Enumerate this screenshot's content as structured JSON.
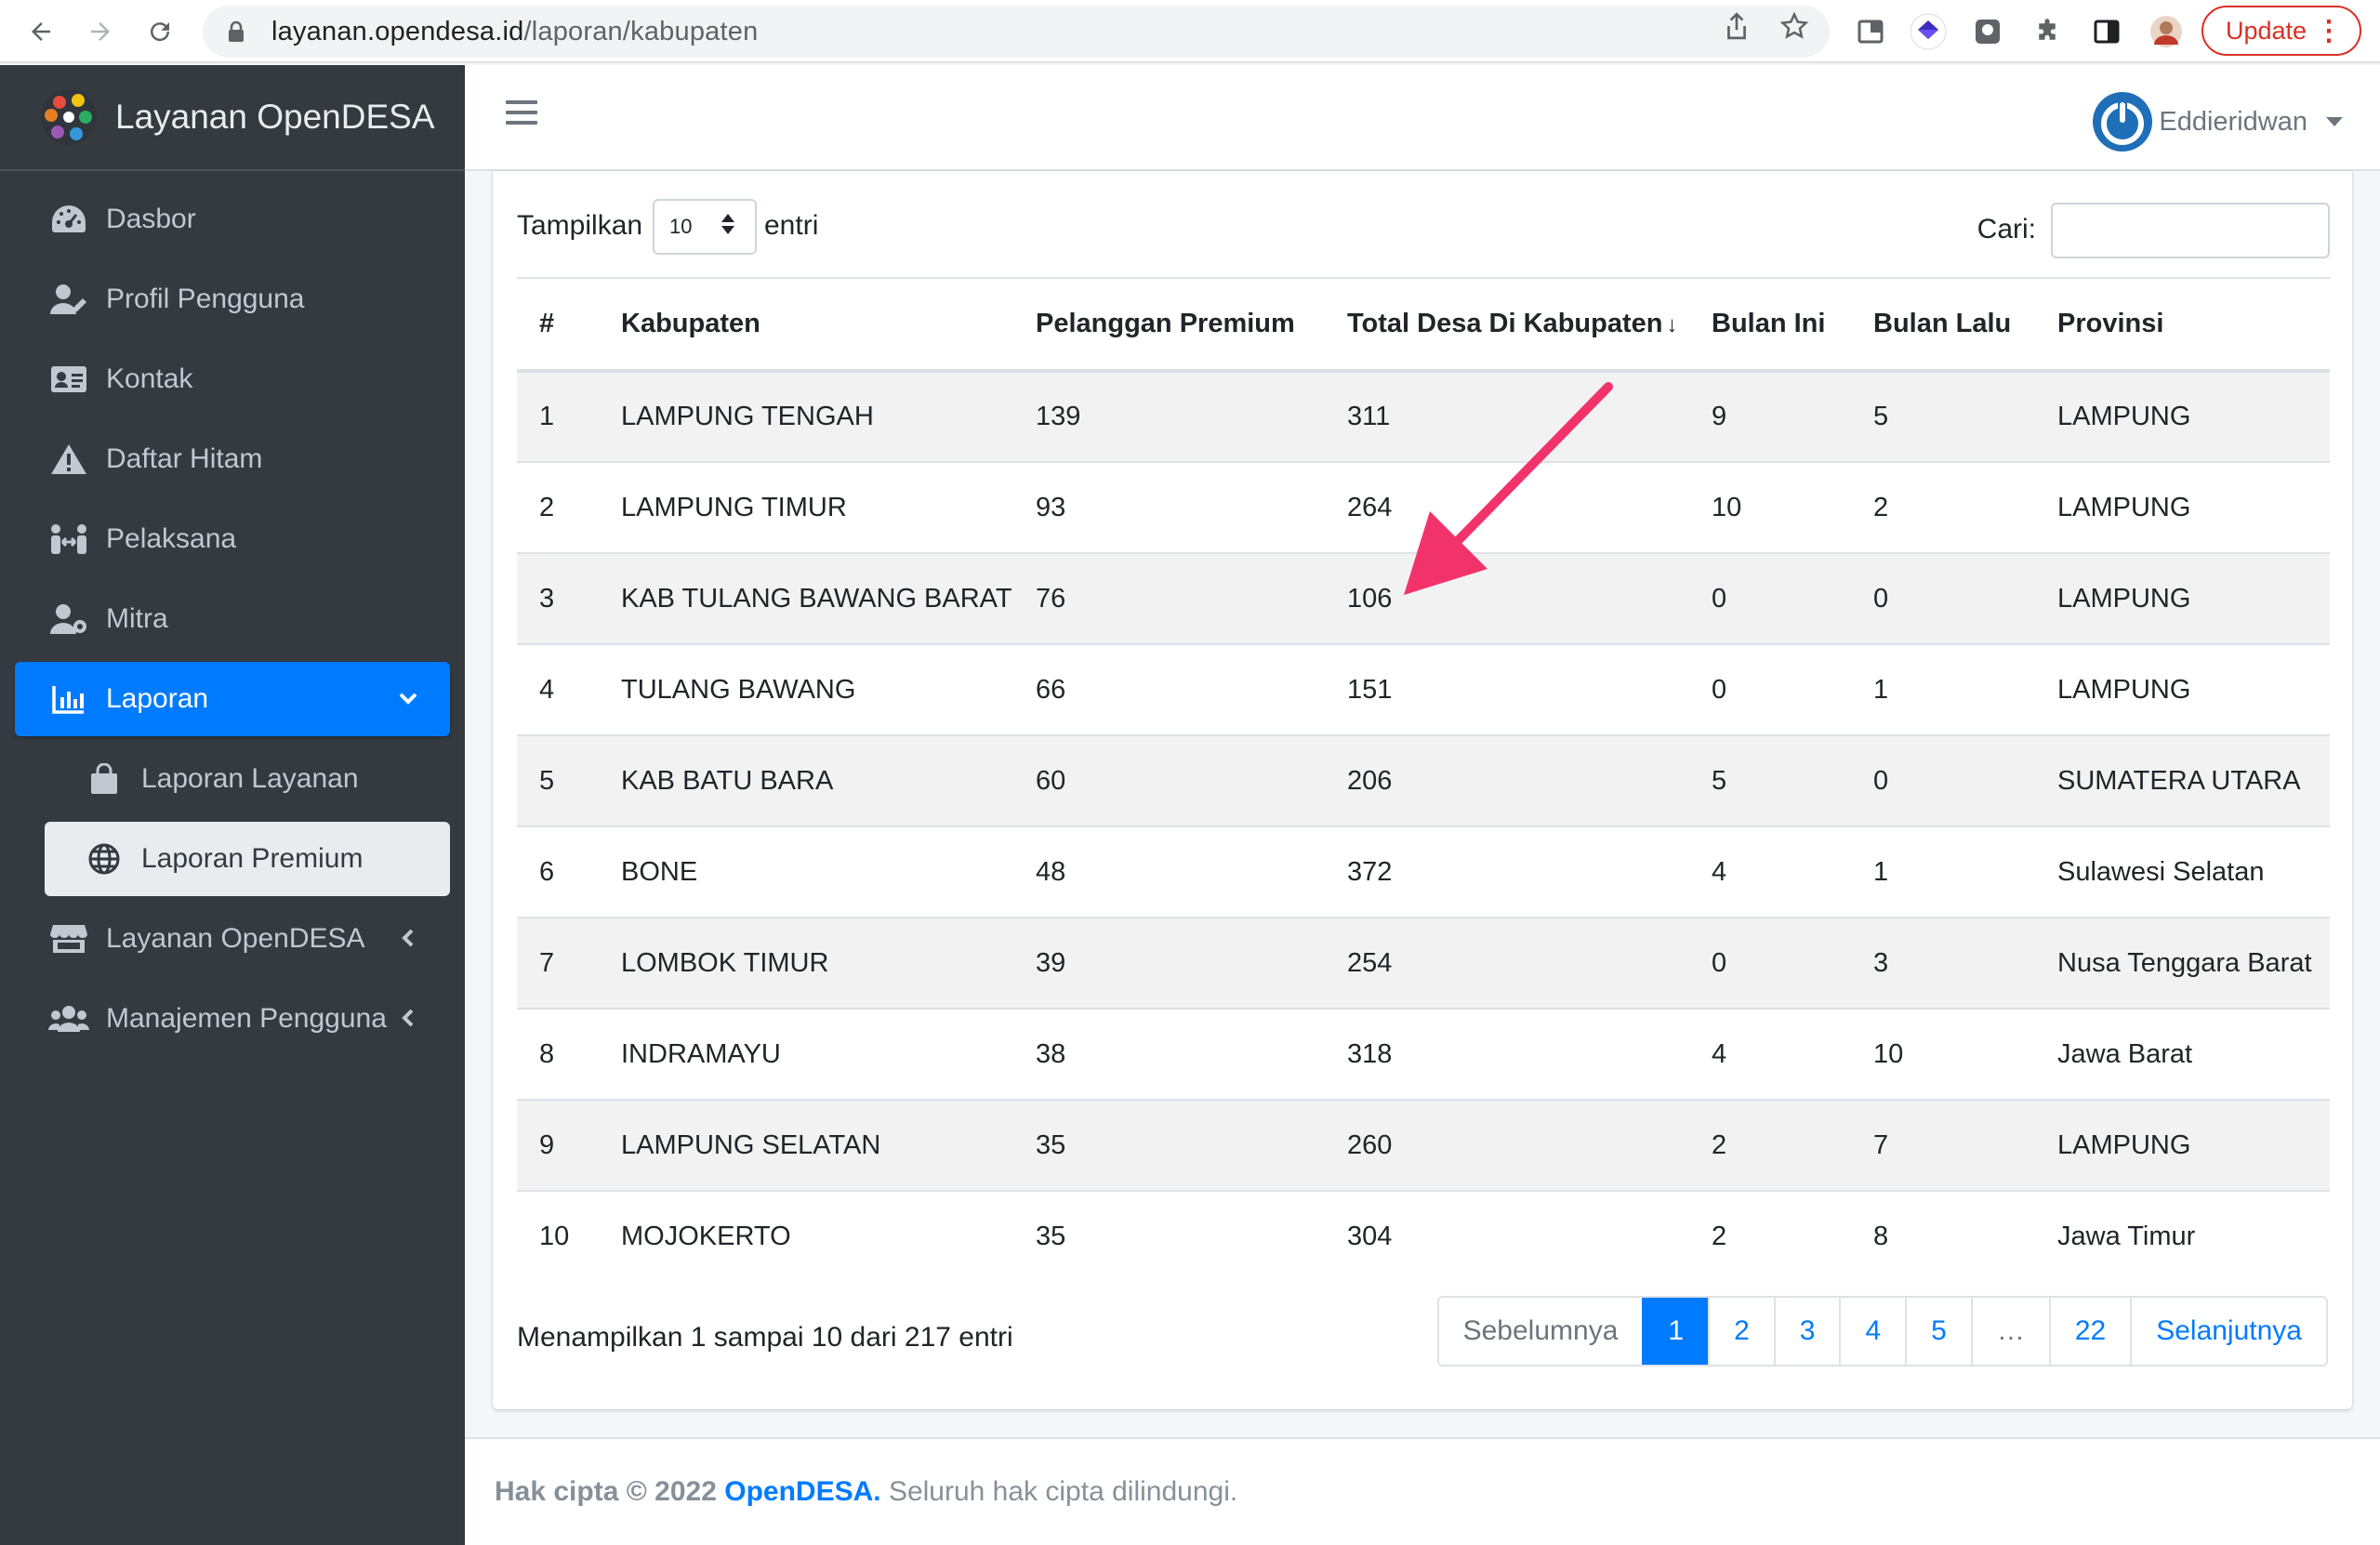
{
  "browser": {
    "url_host": "layanan.opendesa.id",
    "url_path": "/laporan/kabupaten",
    "update_label": "Update"
  },
  "sidebar": {
    "brand": "Layanan OpenDESA",
    "items": [
      {
        "label": "Dasbor",
        "icon": "tachometer-icon"
      },
      {
        "label": "Profil Pengguna",
        "icon": "user-edit-icon"
      },
      {
        "label": "Kontak",
        "icon": "address-card-icon"
      },
      {
        "label": "Daftar Hitam",
        "icon": "warning-icon"
      },
      {
        "label": "Pelaksana",
        "icon": "people-arrows-icon"
      },
      {
        "label": "Mitra",
        "icon": "user-cog-icon"
      },
      {
        "label": "Laporan",
        "icon": "chart-bar-icon"
      },
      {
        "label": "Laporan Layanan",
        "icon": "shopping-bag-icon"
      },
      {
        "label": "Laporan Premium",
        "icon": "globe-icon"
      },
      {
        "label": "Layanan OpenDESA",
        "icon": "store-icon"
      },
      {
        "label": "Manajemen Pengguna",
        "icon": "users-icon"
      }
    ]
  },
  "topbar": {
    "user_name": "Eddieridwan"
  },
  "table_controls": {
    "show_label": "Tampilkan",
    "length_value": "10",
    "entries_label": "entri",
    "search_label": "Cari:",
    "search_value": ""
  },
  "table": {
    "headers": [
      "#",
      "Kabupaten",
      "Pelanggan Premium",
      "Total Desa Di Kabupaten",
      "Bulan Ini",
      "Bulan Lalu",
      "Provinsi"
    ],
    "rows": [
      [
        "1",
        "LAMPUNG TENGAH",
        "139",
        "311",
        "9",
        "5",
        "LAMPUNG"
      ],
      [
        "2",
        "LAMPUNG TIMUR",
        "93",
        "264",
        "10",
        "2",
        "LAMPUNG"
      ],
      [
        "3",
        "KAB TULANG BAWANG BARAT",
        "76",
        "106",
        "0",
        "0",
        "LAMPUNG"
      ],
      [
        "4",
        "TULANG BAWANG",
        "66",
        "151",
        "0",
        "1",
        "LAMPUNG"
      ],
      [
        "5",
        "KAB BATU BARA",
        "60",
        "206",
        "5",
        "0",
        "SUMATERA UTARA"
      ],
      [
        "6",
        "BONE",
        "48",
        "372",
        "4",
        "1",
        "Sulawesi Selatan"
      ],
      [
        "7",
        "LOMBOK TIMUR",
        "39",
        "254",
        "0",
        "3",
        "Nusa Tenggara Barat"
      ],
      [
        "8",
        "INDRAMAYU",
        "38",
        "318",
        "4",
        "10",
        "Jawa Barat"
      ],
      [
        "9",
        "LAMPUNG SELATAN",
        "35",
        "260",
        "2",
        "7",
        "LAMPUNG"
      ],
      [
        "10",
        "MOJOKERTO",
        "35",
        "304",
        "2",
        "8",
        "Jawa Timur"
      ]
    ]
  },
  "info_text": "Menampilkan 1 sampai 10 dari 217 entri",
  "pagination": {
    "previous": "Sebelumnya",
    "pages": [
      "1",
      "2",
      "3",
      "4",
      "5",
      "…",
      "22"
    ],
    "next": "Selanjutnya",
    "current": "1"
  },
  "footer": {
    "prefix": "Hak cipta © 2022 ",
    "link": "OpenDESA.",
    "suffix": " Seluruh hak cipta dilindungi."
  },
  "colors": {
    "accent": "#007bff",
    "sidebar_bg": "#343a40",
    "annotation_arrow": "#f2336b"
  }
}
